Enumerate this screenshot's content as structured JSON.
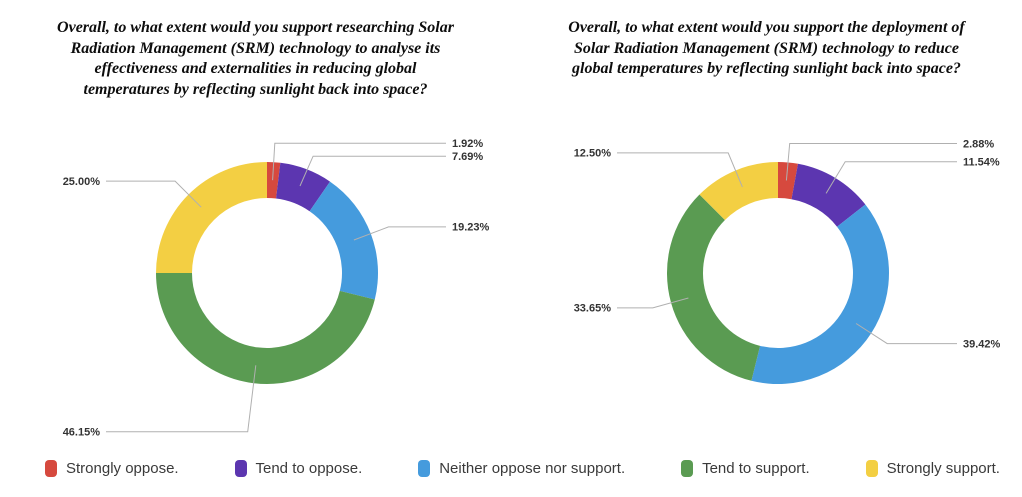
{
  "figure": {
    "description": "Two donut charts comparing support for researching vs deploying Solar Radiation Management (SRM) technology",
    "background": "#ffffff"
  },
  "style": {
    "leader_line_color": "#b0b0b0",
    "value_label_color": "#333333",
    "title_color": "#0d0d0d",
    "legend_text_color": "#3a3a3a"
  },
  "chart_data": [
    {
      "type": "pie",
      "subtype": "donut",
      "title": "Overall, to what extent would you support researching Solar Radiation Management (SRM) technology to analyse its effectiveness and externalities in reducing global temperatures by reflecting sunlight back into space?",
      "title_lines": [
        "Overall, to what extent would you support researching Solar",
        "Radiation Management (SRM) technology to analyse its",
        "effectiveness and externalities in reducing global",
        "temperatures by reflecting sunlight back into space?"
      ],
      "categories": [
        "Strongly oppose.",
        "Tend to oppose.",
        "Neither oppose nor support.",
        "Tend to support.",
        "Strongly support."
      ],
      "values": [
        1.92,
        7.69,
        19.23,
        46.15,
        25.0
      ],
      "labels": [
        "1.92%",
        "7.69%",
        "19.23%",
        "46.15%",
        "25.00%"
      ],
      "colors": [
        "#d6493e",
        "#5c36b0",
        "#459bdd",
        "#5a9b52",
        "#f3cf43"
      ],
      "unit": "%",
      "start_angle_deg": 0,
      "direction": "clockwise",
      "inner_radius_ratio": 0.675,
      "legend_position": "bottom-shared"
    },
    {
      "type": "pie",
      "subtype": "donut",
      "title": "Overall, to what extent would you support the deployment of Solar Radiation Management (SRM) technology to reduce global temperatures by reflecting sunlight back into space?",
      "title_lines": [
        "Overall, to what extent would you support the deployment of",
        "Solar Radiation Management (SRM) technology to reduce",
        "global temperatures by reflecting sunlight back into space?"
      ],
      "categories": [
        "Strongly oppose.",
        "Tend to oppose.",
        "Neither oppose nor support.",
        "Tend to support.",
        "Strongly support."
      ],
      "values": [
        2.88,
        11.54,
        39.42,
        33.65,
        12.5
      ],
      "labels": [
        "2.88%",
        "11.54%",
        "39.42%",
        "33.65%",
        "12.50%"
      ],
      "colors": [
        "#d6493e",
        "#5c36b0",
        "#459bdd",
        "#5a9b52",
        "#f3cf43"
      ],
      "unit": "%",
      "start_angle_deg": 0,
      "direction": "clockwise",
      "inner_radius_ratio": 0.675,
      "legend_position": "bottom-shared"
    }
  ],
  "legend": {
    "position": "bottom",
    "items": [
      {
        "label": "Strongly oppose.",
        "color": "#d6493e"
      },
      {
        "label": "Tend to oppose.",
        "color": "#5c36b0"
      },
      {
        "label": "Neither oppose nor support.",
        "color": "#459bdd"
      },
      {
        "label": "Tend to support.",
        "color": "#5a9b52"
      },
      {
        "label": "Strongly support.",
        "color": "#f3cf43"
      }
    ]
  }
}
